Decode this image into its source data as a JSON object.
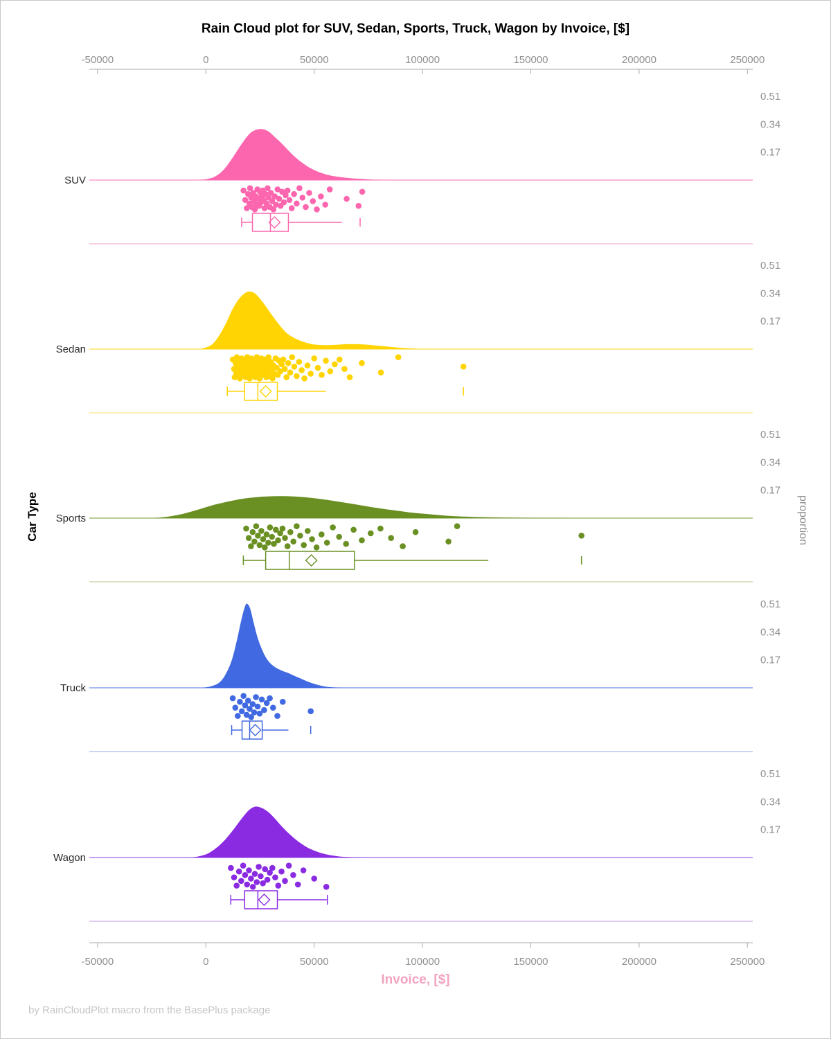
{
  "title": "Rain Cloud plot for SUV, Sedan, Sports, Truck, Wagon by Invoice, [$]",
  "footer": "by RainCloudPlot macro from the BasePlus package",
  "axis": {
    "xlabel": "Invoice, [$]",
    "ylabel_left": "Car Type",
    "ylabel_right": "proportion",
    "xlim": [
      -50000,
      250000
    ],
    "tick_values": [
      -50000,
      0,
      50000,
      100000,
      150000,
      200000,
      250000
    ],
    "tick_labels": [
      "-50000",
      "0",
      "50000",
      "100000",
      "150000",
      "200000",
      "250000"
    ],
    "tick_color": "#8f8f8f",
    "axis_line_color": "#ababab",
    "xlabel_color": "#f2a3c0"
  },
  "chart_data": {
    "type": "raincloud",
    "title": "Rain Cloud plot for SUV, Sedan, Sports, Truck, Wagon by Invoice, [$]",
    "xlabel": "Invoice, [$]",
    "ylabel_left": "Car Type",
    "ylabel_right": "proportion",
    "xlim": [
      -50000,
      250000
    ],
    "proportion_ticks": [
      0.51,
      0.34,
      0.17
    ],
    "categories": [
      "SUV",
      "Sedan",
      "Sports",
      "Truck",
      "Wagon"
    ],
    "series": [
      {
        "name": "SUV",
        "color": "#fc66ae",
        "separator_color": "#fbd0e4",
        "density": [
          [
            -4000,
            0
          ],
          [
            0,
            0.005
          ],
          [
            4000,
            0.02
          ],
          [
            8000,
            0.06
          ],
          [
            12000,
            0.13
          ],
          [
            16000,
            0.21
          ],
          [
            20000,
            0.28
          ],
          [
            23000,
            0.305
          ],
          [
            26000,
            0.31
          ],
          [
            29000,
            0.295
          ],
          [
            32000,
            0.26
          ],
          [
            36000,
            0.21
          ],
          [
            40000,
            0.155
          ],
          [
            44000,
            0.11
          ],
          [
            48000,
            0.075
          ],
          [
            52000,
            0.05
          ],
          [
            56000,
            0.033
          ],
          [
            60000,
            0.022
          ],
          [
            64000,
            0.015
          ],
          [
            68000,
            0.01
          ],
          [
            72000,
            0.007
          ],
          [
            76000,
            0.004
          ],
          [
            80000,
            0.002
          ],
          [
            85000,
            0
          ]
        ],
        "box": {
          "low": 16500,
          "q1": 21500,
          "median": 29800,
          "q3": 38100,
          "high": 62800,
          "mean": 31700,
          "outliers": [
            71200
          ]
        },
        "rain_values": [
          17400,
          18200,
          18900,
          19500,
          20100,
          20400,
          20900,
          21300,
          21800,
          22200,
          22600,
          23000,
          23400,
          23800,
          24200,
          24600,
          25000,
          25400,
          25800,
          26200,
          26700,
          27100,
          27600,
          28000,
          28500,
          29000,
          29500,
          30000,
          30600,
          31200,
          31800,
          32400,
          33100,
          33800,
          34500,
          35200,
          36000,
          36800,
          37700,
          38600,
          39600,
          40700,
          41900,
          43200,
          44600,
          46100,
          47700,
          49400,
          51200,
          53100,
          55100,
          57200,
          65000,
          70500,
          72200
        ],
        "rain_jitter": [
          0.15,
          0.55,
          0.9,
          0.3,
          0.7,
          0.05,
          0.45,
          0.85,
          0.25,
          0.6,
          0.95,
          0.4,
          0.75,
          0.1,
          0.5,
          0.8,
          0.2,
          0.65,
          0.35,
          0.15,
          0.55,
          0.9,
          0.3,
          0.7,
          0.05,
          0.45,
          0.85,
          0.25,
          0.6,
          0.95,
          0.4,
          0.75,
          0.1,
          0.5,
          0.8,
          0.2,
          0.65,
          0.35,
          0.15,
          0.55,
          0.9,
          0.3,
          0.7,
          0.05,
          0.45,
          0.85,
          0.25,
          0.6,
          0.95,
          0.4,
          0.75,
          0.1,
          0.5,
          0.8,
          0.2
        ]
      },
      {
        "name": "Sedan",
        "color": "#ffd402",
        "separator_color": "#fbefb3",
        "density": [
          [
            -3000,
            0
          ],
          [
            0,
            0.01
          ],
          [
            3000,
            0.03
          ],
          [
            6000,
            0.08
          ],
          [
            9000,
            0.15
          ],
          [
            12000,
            0.235
          ],
          [
            15000,
            0.3
          ],
          [
            18000,
            0.34
          ],
          [
            20500,
            0.35
          ],
          [
            23000,
            0.335
          ],
          [
            26000,
            0.29
          ],
          [
            29000,
            0.235
          ],
          [
            32000,
            0.18
          ],
          [
            35000,
            0.13
          ],
          [
            38000,
            0.09
          ],
          [
            42000,
            0.06
          ],
          [
            46000,
            0.04
          ],
          [
            50000,
            0.028
          ],
          [
            55000,
            0.024
          ],
          [
            60000,
            0.026
          ],
          [
            65000,
            0.03
          ],
          [
            70000,
            0.03
          ],
          [
            75000,
            0.026
          ],
          [
            80000,
            0.02
          ],
          [
            85000,
            0.014
          ],
          [
            90000,
            0.008
          ],
          [
            95000,
            0.004
          ],
          [
            100000,
            0.001
          ],
          [
            105000,
            0
          ]
        ],
        "box": {
          "low": 9900,
          "q1": 17900,
          "median": 24000,
          "q3": 33000,
          "high": 55400,
          "mean": 27600,
          "outliers": [
            118900
          ]
        },
        "rain_values": [
          12400,
          13000,
          13300,
          13700,
          14000,
          14300,
          14600,
          14900,
          15200,
          15500,
          15700,
          16000,
          16200,
          16500,
          16700,
          17000,
          17200,
          17400,
          17700,
          17900,
          18100,
          18400,
          18600,
          18800,
          19100,
          19300,
          19500,
          19800,
          20000,
          20200,
          20500,
          20700,
          20900,
          21200,
          21400,
          21600,
          21900,
          22100,
          22300,
          22600,
          22800,
          23000,
          23300,
          23500,
          23800,
          24000,
          24300,
          24500,
          24800,
          25000,
          25300,
          25600,
          25800,
          26100,
          26400,
          26700,
          27000,
          27300,
          27600,
          27900,
          28200,
          28500,
          28900,
          29200,
          29600,
          30000,
          30400,
          30800,
          31200,
          31700,
          32200,
          32700,
          33200,
          33800,
          34400,
          35000,
          35700,
          36400,
          37200,
          38000,
          38900,
          39800,
          40800,
          41900,
          43000,
          44200,
          45500,
          46900,
          48400,
          50000,
          51700,
          53500,
          55400,
          57400,
          59500,
          61700,
          64000,
          66400,
          72000,
          80800,
          88800,
          118900
        ],
        "rain_jitter": [
          0.15,
          0.55,
          0.9,
          0.3,
          0.7,
          0.05,
          0.45,
          0.85,
          0.25,
          0.6,
          0.95,
          0.4,
          0.75,
          0.1,
          0.5,
          0.8,
          0.2,
          0.65,
          0.35,
          0.15,
          0.55,
          0.9,
          0.3,
          0.7,
          0.05,
          0.45,
          0.85,
          0.25,
          0.6,
          0.95,
          0.4,
          0.75,
          0.1,
          0.5,
          0.8,
          0.2,
          0.65,
          0.35,
          0.15,
          0.55,
          0.9,
          0.3,
          0.7,
          0.05,
          0.45,
          0.85,
          0.25,
          0.6,
          0.95,
          0.4,
          0.75,
          0.1,
          0.5,
          0.8,
          0.2,
          0.65,
          0.35,
          0.15,
          0.55,
          0.9,
          0.3,
          0.7,
          0.05,
          0.45,
          0.85,
          0.25,
          0.6,
          0.95,
          0.4,
          0.75,
          0.1,
          0.5,
          0.8,
          0.2,
          0.65,
          0.35,
          0.15,
          0.55,
          0.9,
          0.3,
          0.7,
          0.05,
          0.45,
          0.85,
          0.25,
          0.6,
          0.95,
          0.4,
          0.75,
          0.1,
          0.5,
          0.8,
          0.2,
          0.65,
          0.35,
          0.15,
          0.55,
          0.9,
          0.3,
          0.7,
          0.05,
          0.45
        ]
      },
      {
        "name": "Sports",
        "color": "#6a9023",
        "separator_color": "#dce3c6",
        "density": [
          [
            -25000,
            0
          ],
          [
            -18000,
            0.008
          ],
          [
            -11000,
            0.025
          ],
          [
            -4000,
            0.05
          ],
          [
            3000,
            0.078
          ],
          [
            10000,
            0.1
          ],
          [
            17000,
            0.118
          ],
          [
            24000,
            0.128
          ],
          [
            31000,
            0.133
          ],
          [
            38000,
            0.133
          ],
          [
            45000,
            0.128
          ],
          [
            52000,
            0.118
          ],
          [
            59000,
            0.105
          ],
          [
            66000,
            0.09
          ],
          [
            73000,
            0.075
          ],
          [
            80000,
            0.06
          ],
          [
            87000,
            0.047
          ],
          [
            94000,
            0.035
          ],
          [
            101000,
            0.026
          ],
          [
            108000,
            0.018
          ],
          [
            115000,
            0.012
          ],
          [
            122000,
            0.008
          ],
          [
            130000,
            0.005
          ],
          [
            140000,
            0.003
          ],
          [
            150000,
            0.002
          ],
          [
            160000,
            0.001
          ],
          [
            170000,
            0
          ]
        ],
        "box": {
          "low": 17300,
          "q1": 27600,
          "median": 38500,
          "q3": 68600,
          "high": 130400,
          "mean": 48700,
          "outliers": [
            173400
          ]
        },
        "rain_values": [
          18600,
          19800,
          20800,
          21600,
          22400,
          23200,
          24000,
          24800,
          25600,
          26400,
          27200,
          28000,
          28800,
          29600,
          30500,
          31400,
          32300,
          33300,
          34300,
          35400,
          36500,
          37700,
          39000,
          40400,
          41900,
          43500,
          45200,
          47000,
          49000,
          51100,
          53400,
          55900,
          58600,
          61500,
          64700,
          68200,
          72000,
          76100,
          80600,
          85500,
          90900,
          96800,
          112000,
          116000,
          173400
        ],
        "rain_jitter": [
          0.15,
          0.55,
          0.9,
          0.3,
          0.7,
          0.05,
          0.45,
          0.85,
          0.25,
          0.6,
          0.95,
          0.4,
          0.75,
          0.1,
          0.5,
          0.8,
          0.2,
          0.65,
          0.35,
          0.15,
          0.55,
          0.9,
          0.3,
          0.7,
          0.05,
          0.45,
          0.85,
          0.25,
          0.6,
          0.95,
          0.4,
          0.75,
          0.1,
          0.5,
          0.8,
          0.2,
          0.65,
          0.35,
          0.15,
          0.55,
          0.9,
          0.3,
          0.7,
          0.05,
          0.45
        ]
      },
      {
        "name": "Truck",
        "color": "#4169e1",
        "separator_color": "#c8d5f3",
        "density": [
          [
            -2000,
            0
          ],
          [
            2000,
            0.008
          ],
          [
            6000,
            0.03
          ],
          [
            9000,
            0.08
          ],
          [
            12000,
            0.17
          ],
          [
            14500,
            0.3
          ],
          [
            16500,
            0.42
          ],
          [
            18200,
            0.5
          ],
          [
            19200,
            0.51
          ],
          [
            20500,
            0.48
          ],
          [
            22000,
            0.4
          ],
          [
            24000,
            0.3
          ],
          [
            26500,
            0.215
          ],
          [
            29000,
            0.16
          ],
          [
            32000,
            0.125
          ],
          [
            35000,
            0.105
          ],
          [
            38000,
            0.09
          ],
          [
            41000,
            0.072
          ],
          [
            44000,
            0.055
          ],
          [
            47000,
            0.038
          ],
          [
            50000,
            0.024
          ],
          [
            53000,
            0.013
          ],
          [
            56000,
            0.006
          ],
          [
            60000,
            0.002
          ],
          [
            64000,
            0
          ]
        ],
        "box": {
          "low": 11900,
          "q1": 16700,
          "median": 20200,
          "q3": 26000,
          "high": 38100,
          "mean": 22800,
          "outliers": [
            48400
          ]
        },
        "rain_values": [
          12400,
          13600,
          14700,
          15700,
          16600,
          17400,
          18100,
          18800,
          19500,
          20200,
          20900,
          21600,
          22300,
          23100,
          23900,
          24800,
          25800,
          26900,
          28100,
          29500,
          31000,
          33000,
          35500,
          48400
        ],
        "rain_jitter": [
          0.15,
          0.55,
          0.9,
          0.3,
          0.7,
          0.05,
          0.45,
          0.85,
          0.25,
          0.6,
          0.95,
          0.4,
          0.75,
          0.1,
          0.5,
          0.8,
          0.2,
          0.65,
          0.35,
          0.15,
          0.55,
          0.9,
          0.3,
          0.7
        ]
      },
      {
        "name": "Wagon",
        "color": "#8a2be2",
        "separator_color": "#e0cbf2",
        "density": [
          [
            -7000,
            0
          ],
          [
            -3000,
            0.008
          ],
          [
            1000,
            0.025
          ],
          [
            5000,
            0.06
          ],
          [
            9000,
            0.11
          ],
          [
            13000,
            0.175
          ],
          [
            17000,
            0.245
          ],
          [
            20000,
            0.29
          ],
          [
            23000,
            0.31
          ],
          [
            26000,
            0.3
          ],
          [
            29000,
            0.275
          ],
          [
            32000,
            0.235
          ],
          [
            35000,
            0.19
          ],
          [
            38000,
            0.15
          ],
          [
            41000,
            0.115
          ],
          [
            44000,
            0.085
          ],
          [
            47000,
            0.06
          ],
          [
            50000,
            0.042
          ],
          [
            53000,
            0.028
          ],
          [
            56000,
            0.018
          ],
          [
            59000,
            0.011
          ],
          [
            62000,
            0.006
          ],
          [
            66000,
            0.003
          ],
          [
            70000,
            0.001
          ],
          [
            74000,
            0
          ]
        ],
        "box": {
          "low": 11500,
          "q1": 17900,
          "median": 24000,
          "q3": 33000,
          "high": 56100,
          "mean": 26900,
          "outliers": []
        },
        "rain_values": [
          11540,
          13000,
          14200,
          15300,
          16300,
          17200,
          18100,
          19000,
          19900,
          20800,
          21700,
          22600,
          23500,
          24400,
          25300,
          26300,
          27300,
          28400,
          29500,
          30700,
          32000,
          33400,
          34900,
          36500,
          38300,
          40300,
          42500,
          45000,
          50000,
          55600
        ],
        "rain_jitter": [
          0.15,
          0.55,
          0.9,
          0.3,
          0.7,
          0.05,
          0.45,
          0.85,
          0.25,
          0.6,
          0.95,
          0.4,
          0.75,
          0.1,
          0.5,
          0.8,
          0.2,
          0.65,
          0.35,
          0.15,
          0.55,
          0.9,
          0.3,
          0.7,
          0.05,
          0.45,
          0.85,
          0.25,
          0.6,
          0.95
        ]
      }
    ]
  }
}
